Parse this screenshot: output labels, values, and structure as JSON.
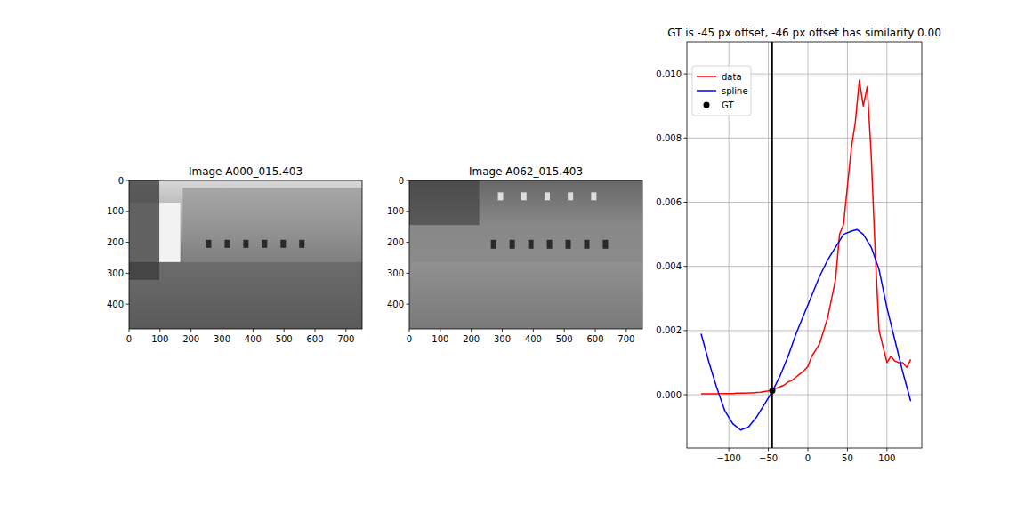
{
  "chart_data": [
    {
      "type": "image",
      "title": "Image A000_015.403",
      "xlim": [
        0,
        752
      ],
      "ylim": [
        480,
        0
      ],
      "xticks": [
        0,
        100,
        200,
        300,
        400,
        500,
        600,
        700
      ],
      "yticks": [
        0,
        100,
        200,
        300,
        400
      ]
    },
    {
      "type": "image",
      "title": "Image A062_015.403",
      "xlim": [
        0,
        752
      ],
      "ylim": [
        480,
        0
      ],
      "xticks": [
        0,
        100,
        200,
        300,
        400,
        500,
        600,
        700
      ],
      "yticks": [
        0,
        100,
        200,
        300,
        400
      ]
    },
    {
      "type": "line",
      "title": "GT is -45 px offset, -46 px offset has similarity 0.00",
      "xlim": [
        -153,
        144
      ],
      "ylim": [
        -0.00166,
        0.011
      ],
      "xticks": [
        {
          "value": -100,
          "label": "−100"
        },
        {
          "value": -50,
          "label": "−50"
        },
        0,
        50,
        100
      ],
      "yticks": [
        {
          "value": 0,
          "label": "0.000"
        },
        {
          "value": 0.002,
          "label": "0.002"
        },
        {
          "value": 0.004,
          "label": "0.004"
        },
        {
          "value": 0.006,
          "label": "0.006"
        },
        {
          "value": 0.008,
          "label": "0.008"
        },
        {
          "value": 0.01,
          "label": "0.010"
        }
      ],
      "grid": true,
      "legend": "upper left",
      "vlines": [
        -46,
        -45
      ],
      "series": [
        {
          "name": "data",
          "color": "#ff0000",
          "type": "line",
          "x": [
            -135,
            -130,
            -125,
            -120,
            -115,
            -110,
            -105,
            -100,
            -95,
            -90,
            -85,
            -80,
            -75,
            -70,
            -65,
            -60,
            -55,
            -50,
            -45,
            -40,
            -35,
            -30,
            -25,
            -20,
            -15,
            -10,
            -5,
            0,
            5,
            10,
            15,
            20,
            25,
            30,
            35,
            40,
            45,
            50,
            55,
            60,
            65,
            70,
            75,
            80,
            85,
            90,
            95,
            100,
            105,
            110,
            115,
            120,
            125,
            130
          ],
          "values": [
            3e-05,
            3e-05,
            3e-05,
            3e-05,
            3e-05,
            4e-05,
            4e-05,
            4e-05,
            4e-05,
            5e-05,
            5e-05,
            5e-05,
            6e-05,
            6e-05,
            7e-05,
            8e-05,
            0.0001,
            0.00012,
            0.00015,
            0.0002,
            0.00025,
            0.0003,
            0.0004,
            0.00045,
            0.00055,
            0.00065,
            0.00075,
            0.00088,
            0.0012,
            0.0014,
            0.0016,
            0.002,
            0.0024,
            0.003,
            0.0036,
            0.005,
            0.0053,
            0.0065,
            0.0077,
            0.0085,
            0.0098,
            0.009,
            0.0096,
            0.0075,
            0.0045,
            0.002,
            0.0015,
            0.001,
            0.0012,
            0.00105,
            0.001,
            0.001,
            0.00085,
            0.0011
          ]
        },
        {
          "name": "spline",
          "color": "#0000ff",
          "type": "line",
          "x": [
            -135,
            -125,
            -115,
            -105,
            -95,
            -85,
            -75,
            -65,
            -55,
            -45,
            -35,
            -25,
            -15,
            -5,
            5,
            15,
            25,
            35,
            45,
            55,
            62,
            70,
            80,
            90,
            100,
            110,
            120,
            130
          ],
          "values": [
            0.0019,
            0.001,
            0.0002,
            -0.0005,
            -0.0009,
            -0.0011,
            -0.001,
            -0.0007,
            -0.0003,
            0.0001,
            0.0006,
            0.0012,
            0.0019,
            0.0025,
            0.0031,
            0.0037,
            0.0042,
            0.0046,
            0.005,
            0.0051,
            0.00515,
            0.005,
            0.0046,
            0.0039,
            0.0027,
            0.0017,
            0.0007,
            -0.0002
          ]
        },
        {
          "name": "GT",
          "color": "#000000",
          "type": "scatter",
          "marker": "circle",
          "x": [
            -45
          ],
          "values": [
            0.00013
          ]
        }
      ]
    }
  ]
}
